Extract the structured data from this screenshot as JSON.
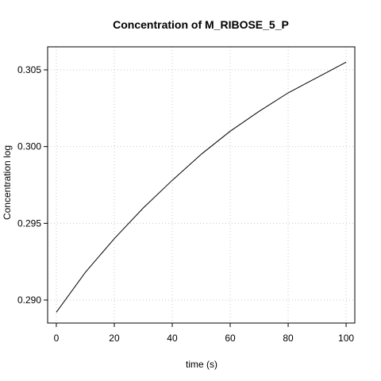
{
  "chart_data": {
    "type": "line",
    "title": "Concentration of M_RIBOSE_5_P",
    "xlabel": "time (s)",
    "ylabel": "Concentration log",
    "xlim": [
      -3,
      103
    ],
    "ylim": [
      0.2885,
      0.3065
    ],
    "x_ticks": [
      0,
      20,
      40,
      60,
      80,
      100
    ],
    "x_tick_labels": [
      "0",
      "20",
      "40",
      "60",
      "80",
      "100"
    ],
    "y_ticks": [
      0.29,
      0.295,
      0.3,
      0.305
    ],
    "y_tick_labels": [
      "0.290",
      "0.295",
      "0.300",
      "0.305"
    ],
    "grid": true,
    "series": [
      {
        "name": "M_RIBOSE_5_P",
        "color": "#000000",
        "x": [
          0,
          10,
          20,
          30,
          40,
          50,
          60,
          70,
          80,
          90,
          100
        ],
        "values": [
          0.2892,
          0.2918,
          0.294,
          0.296,
          0.2978,
          0.2995,
          0.301,
          0.3023,
          0.3035,
          0.3045,
          0.3055
        ]
      }
    ]
  }
}
